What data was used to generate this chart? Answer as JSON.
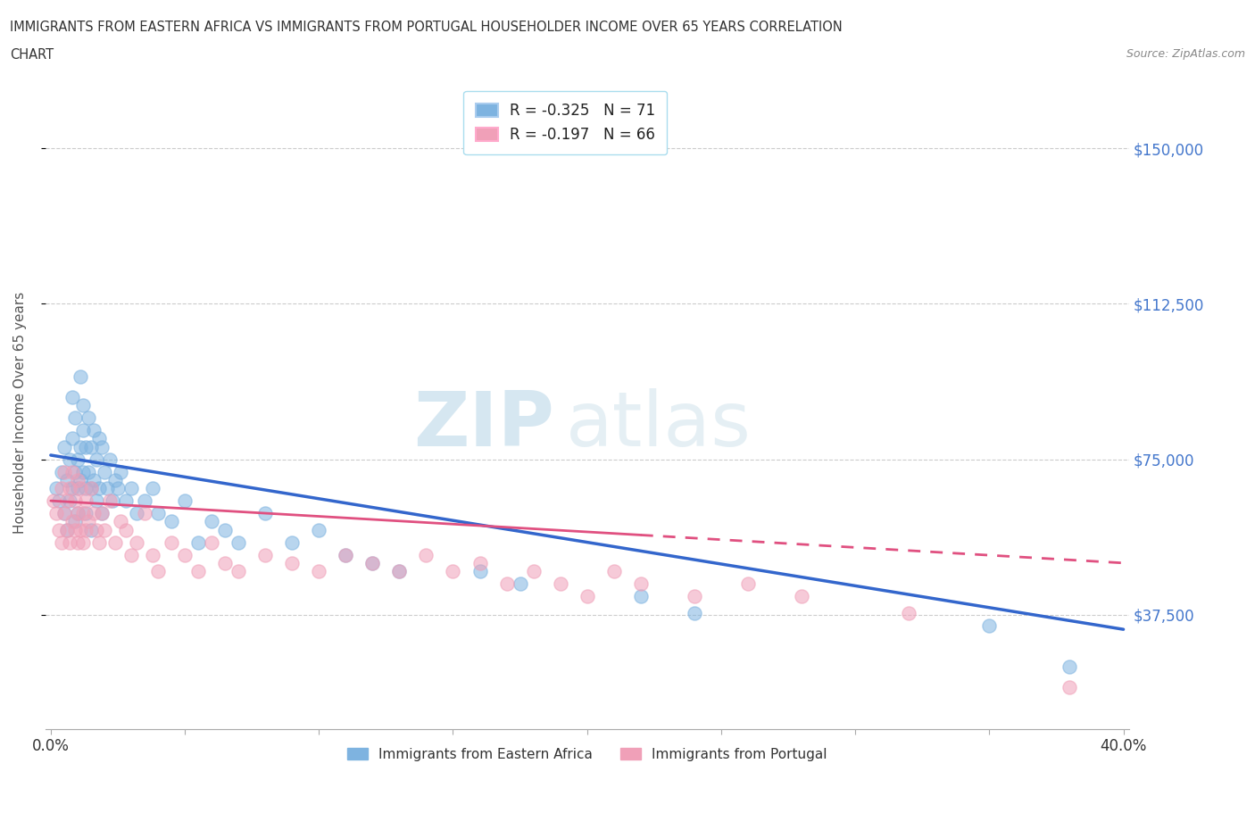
{
  "title_line1": "IMMIGRANTS FROM EASTERN AFRICA VS IMMIGRANTS FROM PORTUGAL HOUSEHOLDER INCOME OVER 65 YEARS CORRELATION",
  "title_line2": "CHART",
  "source": "Source: ZipAtlas.com",
  "ylabel": "Householder Income Over 65 years",
  "xlim": [
    -0.002,
    0.402
  ],
  "ylim": [
    10000,
    162500
  ],
  "yticks": [
    37500,
    75000,
    112500,
    150000
  ],
  "ytick_labels": [
    "$37,500",
    "$75,000",
    "$112,500",
    "$150,000"
  ],
  "xticks": [
    0.0,
    0.05,
    0.1,
    0.15,
    0.2,
    0.25,
    0.3,
    0.35,
    0.4
  ],
  "color_blue": "#7EB3E0",
  "color_pink": "#F0A0B8",
  "legend_label1": "Immigrants from Eastern Africa",
  "legend_label2": "Immigrants from Portugal",
  "watermark_zip": "ZIP",
  "watermark_atlas": "atlas",
  "blue_scatter_x": [
    0.002,
    0.003,
    0.004,
    0.005,
    0.005,
    0.006,
    0.006,
    0.007,
    0.007,
    0.008,
    0.008,
    0.008,
    0.009,
    0.009,
    0.009,
    0.01,
    0.01,
    0.01,
    0.011,
    0.011,
    0.011,
    0.012,
    0.012,
    0.012,
    0.013,
    0.013,
    0.013,
    0.014,
    0.014,
    0.015,
    0.015,
    0.015,
    0.016,
    0.016,
    0.017,
    0.017,
    0.018,
    0.018,
    0.019,
    0.019,
    0.02,
    0.021,
    0.022,
    0.023,
    0.024,
    0.025,
    0.026,
    0.028,
    0.03,
    0.032,
    0.035,
    0.038,
    0.04,
    0.045,
    0.05,
    0.055,
    0.06,
    0.065,
    0.07,
    0.08,
    0.09,
    0.1,
    0.11,
    0.12,
    0.13,
    0.16,
    0.175,
    0.22,
    0.24,
    0.35,
    0.38
  ],
  "blue_scatter_y": [
    68000,
    65000,
    72000,
    78000,
    62000,
    70000,
    58000,
    75000,
    65000,
    90000,
    80000,
    68000,
    85000,
    72000,
    60000,
    75000,
    68000,
    62000,
    95000,
    78000,
    70000,
    88000,
    82000,
    72000,
    78000,
    68000,
    62000,
    85000,
    72000,
    78000,
    68000,
    58000,
    82000,
    70000,
    75000,
    65000,
    80000,
    68000,
    78000,
    62000,
    72000,
    68000,
    75000,
    65000,
    70000,
    68000,
    72000,
    65000,
    68000,
    62000,
    65000,
    68000,
    62000,
    60000,
    65000,
    55000,
    60000,
    58000,
    55000,
    62000,
    55000,
    58000,
    52000,
    50000,
    48000,
    48000,
    45000,
    42000,
    38000,
    35000,
    25000
  ],
  "pink_scatter_x": [
    0.001,
    0.002,
    0.003,
    0.004,
    0.004,
    0.005,
    0.005,
    0.006,
    0.006,
    0.007,
    0.007,
    0.008,
    0.008,
    0.009,
    0.009,
    0.01,
    0.01,
    0.01,
    0.011,
    0.011,
    0.012,
    0.012,
    0.013,
    0.013,
    0.014,
    0.015,
    0.016,
    0.017,
    0.018,
    0.019,
    0.02,
    0.022,
    0.024,
    0.026,
    0.028,
    0.03,
    0.032,
    0.035,
    0.038,
    0.04,
    0.045,
    0.05,
    0.055,
    0.06,
    0.065,
    0.07,
    0.08,
    0.09,
    0.1,
    0.11,
    0.12,
    0.13,
    0.14,
    0.15,
    0.16,
    0.17,
    0.18,
    0.19,
    0.2,
    0.21,
    0.22,
    0.24,
    0.26,
    0.28,
    0.32,
    0.38
  ],
  "pink_scatter_y": [
    65000,
    62000,
    58000,
    68000,
    55000,
    72000,
    62000,
    65000,
    58000,
    68000,
    55000,
    72000,
    60000,
    65000,
    58000,
    62000,
    70000,
    55000,
    68000,
    58000,
    62000,
    55000,
    65000,
    58000,
    60000,
    68000,
    62000,
    58000,
    55000,
    62000,
    58000,
    65000,
    55000,
    60000,
    58000,
    52000,
    55000,
    62000,
    52000,
    48000,
    55000,
    52000,
    48000,
    55000,
    50000,
    48000,
    52000,
    50000,
    48000,
    52000,
    50000,
    48000,
    52000,
    48000,
    50000,
    45000,
    48000,
    45000,
    42000,
    48000,
    45000,
    42000,
    45000,
    42000,
    38000,
    20000
  ],
  "blue_line_x0": 0.0,
  "blue_line_y0": 76000,
  "blue_line_x1": 0.4,
  "blue_line_y1": 34000,
  "pink_line_x0": 0.0,
  "pink_line_y0": 65000,
  "pink_line_x1": 0.4,
  "pink_line_y1": 50000,
  "pink_line_solid_end": 0.22
}
